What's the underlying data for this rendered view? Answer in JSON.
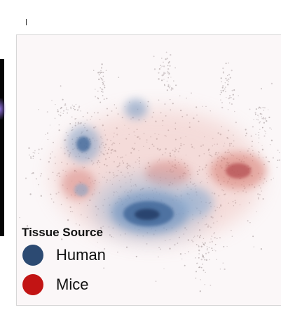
{
  "chart_data": {
    "type": "scatter",
    "title": "",
    "xlabel": "",
    "ylabel": "",
    "grid": false,
    "legend": {
      "title": "Tissue Source",
      "placement": "bottom-left",
      "entries": [
        {
          "name": "Human",
          "color": "#2c4a72"
        },
        {
          "name": "Mice",
          "color": "#c21414"
        }
      ]
    },
    "series": [
      {
        "name": "Human",
        "color": "#2c4a72"
      },
      {
        "name": "Mice",
        "color": "#c21414"
      }
    ]
  }
}
